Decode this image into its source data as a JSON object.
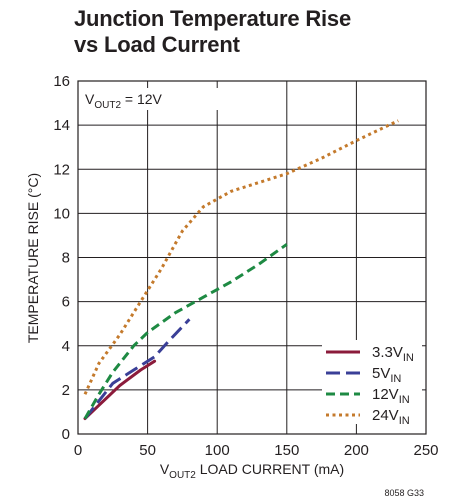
{
  "chart_data": {
    "type": "line",
    "title_lines": [
      "Junction Temperature Rise",
      "vs Load Current"
    ],
    "xlabel": {
      "prefix": "V",
      "sub": "OUT2",
      "suffix": " LOAD CURRENT (mA)"
    },
    "ylabel": "TEMPERATURE RISE (°C)",
    "annotation": {
      "prefix": "V",
      "sub": "OUT2",
      "suffix": " = 12V"
    },
    "figure_code": "8058 G33",
    "xlim": [
      0,
      250
    ],
    "ylim": [
      0,
      16
    ],
    "x_ticks": [
      0,
      50,
      100,
      150,
      200,
      250
    ],
    "y_ticks": [
      0,
      2,
      4,
      6,
      8,
      10,
      12,
      14,
      16
    ],
    "grid": true,
    "legend_position": "bottom-right",
    "series": [
      {
        "name": "3.3VIN",
        "label_main": "3.3V",
        "label_sub": "IN",
        "color": "#8b1b3b",
        "dash": "solid",
        "x": [
          5,
          15,
          30,
          45,
          55
        ],
        "y": [
          0.7,
          1.3,
          2.2,
          2.9,
          3.3
        ]
      },
      {
        "name": "5VIN",
        "label_main": "5V",
        "label_sub": "IN",
        "color": "#3a3f97",
        "dash": "long-dash",
        "x": [
          5,
          15,
          25,
          40,
          55,
          65,
          80
        ],
        "y": [
          0.7,
          1.5,
          2.3,
          2.9,
          3.5,
          4.2,
          5.2
        ]
      },
      {
        "name": "12VIN",
        "label_main": "12V",
        "label_sub": "IN",
        "color": "#1e8a43",
        "dash": "medium-dash",
        "x": [
          5,
          15,
          25,
          40,
          50,
          70,
          90,
          110,
          130,
          150
        ],
        "y": [
          0.7,
          1.8,
          2.8,
          4.0,
          4.6,
          5.5,
          6.2,
          6.9,
          7.7,
          8.6
        ]
      },
      {
        "name": "24VIN",
        "label_main": "24V",
        "label_sub": "IN",
        "color": "#c47a2c",
        "dash": "dotted",
        "x": [
          5,
          15,
          30,
          45,
          60,
          75,
          90,
          110,
          130,
          150,
          175,
          200,
          230
        ],
        "y": [
          1.8,
          3.2,
          4.5,
          6.0,
          7.5,
          9.2,
          10.3,
          11.0,
          11.4,
          11.8,
          12.5,
          13.3,
          14.2
        ]
      }
    ]
  }
}
